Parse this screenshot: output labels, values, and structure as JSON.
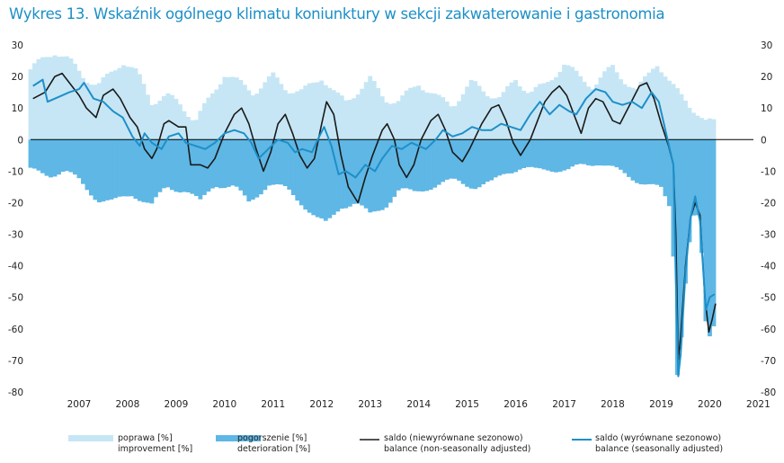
{
  "chart_data": {
    "type": "bar+line",
    "title": "Wykres 13. Wskaźnik ogólnego klimatu koniunktury w sekcji zakwaterowanie i gastronomia",
    "ylim": [
      -80,
      30
    ],
    "y_ticks": [
      "30",
      "20",
      "10",
      "0",
      "-10",
      "-20",
      "-30",
      "-40",
      "-50",
      "-60",
      "-70",
      "-80"
    ],
    "x_start": 2006.5,
    "x_end": 2021.4,
    "categories": [
      "2007",
      "2008",
      "2009",
      "2010",
      "2011",
      "2012",
      "2013",
      "2014",
      "2015",
      "2016",
      "2017",
      "2018",
      "2019",
      "2020",
      "2021"
    ],
    "colors": {
      "improvement": "#c6e6f5",
      "deterioration": "#5eb7e5",
      "nsa": "#1a1a1a",
      "sa": "#1d8fc9",
      "zero": "#000000",
      "title": "#1b8fc7"
    },
    "series": {
      "improvement_anchors": [
        [
          2006.5,
          22
        ],
        [
          2006.8,
          26
        ],
        [
          2007.0,
          28
        ],
        [
          2007.3,
          25
        ],
        [
          2007.6,
          20
        ],
        [
          2007.9,
          17
        ],
        [
          2008.1,
          20
        ],
        [
          2008.4,
          25
        ],
        [
          2008.7,
          21
        ],
        [
          2009.0,
          12
        ],
        [
          2009.3,
          14
        ],
        [
          2009.6,
          11
        ],
        [
          2009.9,
          6
        ],
        [
          2010.2,
          13
        ],
        [
          2010.5,
          21
        ],
        [
          2010.8,
          18
        ],
        [
          2011.1,
          15
        ],
        [
          2011.5,
          20
        ],
        [
          2011.8,
          16
        ],
        [
          2012.1,
          15
        ],
        [
          2012.5,
          20
        ],
        [
          2012.8,
          14
        ],
        [
          2013.0,
          12
        ],
        [
          2013.5,
          19
        ],
        [
          2013.8,
          13
        ],
        [
          2014.1,
          12
        ],
        [
          2014.5,
          18
        ],
        [
          2014.9,
          13
        ],
        [
          2015.2,
          11
        ],
        [
          2015.6,
          18
        ],
        [
          2015.9,
          15
        ],
        [
          2016.2,
          13
        ],
        [
          2016.5,
          19
        ],
        [
          2016.8,
          15
        ],
        [
          2017.1,
          17
        ],
        [
          2017.5,
          24
        ],
        [
          2017.8,
          20
        ],
        [
          2018.1,
          17
        ],
        [
          2018.5,
          23
        ],
        [
          2018.8,
          18
        ],
        [
          2019.0,
          15
        ],
        [
          2019.4,
          25
        ],
        [
          2019.7,
          17
        ],
        [
          2020.0,
          13
        ],
        [
          2020.2,
          9
        ],
        [
          2020.4,
          5
        ],
        [
          2020.6,
          6
        ]
      ],
      "deterioration_anchors": [
        [
          2006.5,
          -10
        ],
        [
          2006.9,
          -11
        ],
        [
          2007.2,
          -10
        ],
        [
          2007.5,
          -13
        ],
        [
          2007.9,
          -19
        ],
        [
          2008.2,
          -20
        ],
        [
          2008.6,
          -17
        ],
        [
          2009.0,
          -21
        ],
        [
          2009.3,
          -15
        ],
        [
          2009.7,
          -16
        ],
        [
          2010.0,
          -20
        ],
        [
          2010.3,
          -14
        ],
        [
          2010.7,
          -15
        ],
        [
          2011.0,
          -20
        ],
        [
          2011.4,
          -14
        ],
        [
          2011.8,
          -16
        ],
        [
          2012.1,
          -20
        ],
        [
          2012.4,
          -25
        ],
        [
          2012.6,
          -27
        ],
        [
          2012.9,
          -21
        ],
        [
          2013.2,
          -20
        ],
        [
          2013.5,
          -24
        ],
        [
          2013.8,
          -21
        ],
        [
          2014.1,
          -16
        ],
        [
          2014.4,
          -17
        ],
        [
          2014.7,
          -15
        ],
        [
          2015.0,
          -14
        ],
        [
          2015.3,
          -13
        ],
        [
          2015.7,
          -15
        ],
        [
          2016.0,
          -14
        ],
        [
          2016.3,
          -10
        ],
        [
          2016.6,
          -9
        ],
        [
          2016.9,
          -10
        ],
        [
          2017.2,
          -9
        ],
        [
          2017.6,
          -10
        ],
        [
          2017.9,
          -8
        ],
        [
          2018.2,
          -7
        ],
        [
          2018.6,
          -10
        ],
        [
          2018.9,
          -12
        ],
        [
          2019.2,
          -14
        ],
        [
          2019.5,
          -16
        ],
        [
          2019.7,
          -22
        ],
        [
          2019.78,
          -45
        ],
        [
          2019.83,
          -74
        ],
        [
          2019.9,
          -65
        ],
        [
          2020.0,
          -45
        ],
        [
          2020.1,
          -30
        ],
        [
          2020.2,
          -22
        ],
        [
          2020.3,
          -28
        ],
        [
          2020.4,
          -55
        ],
        [
          2020.45,
          -65
        ],
        [
          2020.55,
          -60
        ],
        [
          2020.6,
          -58
        ]
      ],
      "nsa_anchors": [
        [
          2006.55,
          13
        ],
        [
          2006.8,
          15
        ],
        [
          2007.0,
          20
        ],
        [
          2007.15,
          21
        ],
        [
          2007.35,
          17
        ],
        [
          2007.5,
          14
        ],
        [
          2007.65,
          10
        ],
        [
          2007.85,
          7
        ],
        [
          2008.0,
          14
        ],
        [
          2008.2,
          16
        ],
        [
          2008.35,
          13
        ],
        [
          2008.55,
          7
        ],
        [
          2008.7,
          4
        ],
        [
          2008.85,
          -3
        ],
        [
          2009.0,
          -6
        ],
        [
          2009.1,
          -3
        ],
        [
          2009.25,
          5
        ],
        [
          2009.35,
          6
        ],
        [
          2009.55,
          4
        ],
        [
          2009.7,
          4
        ],
        [
          2009.8,
          -8
        ],
        [
          2010.0,
          -8
        ],
        [
          2010.15,
          -9
        ],
        [
          2010.3,
          -6
        ],
        [
          2010.5,
          2
        ],
        [
          2010.7,
          8
        ],
        [
          2010.85,
          10
        ],
        [
          2011.0,
          5
        ],
        [
          2011.15,
          -3
        ],
        [
          2011.3,
          -10
        ],
        [
          2011.45,
          -4
        ],
        [
          2011.6,
          5
        ],
        [
          2011.75,
          8
        ],
        [
          2011.9,
          2
        ],
        [
          2012.05,
          -5
        ],
        [
          2012.2,
          -9
        ],
        [
          2012.35,
          -6
        ],
        [
          2012.5,
          5
        ],
        [
          2012.6,
          12
        ],
        [
          2012.75,
          8
        ],
        [
          2012.9,
          -5
        ],
        [
          2013.05,
          -15
        ],
        [
          2013.25,
          -20
        ],
        [
          2013.4,
          -12
        ],
        [
          2013.55,
          -5
        ],
        [
          2013.75,
          3
        ],
        [
          2013.85,
          5
        ],
        [
          2014.0,
          0
        ],
        [
          2014.1,
          -8
        ],
        [
          2014.25,
          -12
        ],
        [
          2014.4,
          -8
        ],
        [
          2014.55,
          0
        ],
        [
          2014.75,
          6
        ],
        [
          2014.9,
          8
        ],
        [
          2015.05,
          3
        ],
        [
          2015.2,
          -4
        ],
        [
          2015.4,
          -7
        ],
        [
          2015.55,
          -3
        ],
        [
          2015.8,
          5
        ],
        [
          2016.0,
          10
        ],
        [
          2016.15,
          11
        ],
        [
          2016.3,
          6
        ],
        [
          2016.45,
          -1
        ],
        [
          2016.6,
          -5
        ],
        [
          2016.8,
          0
        ],
        [
          2016.95,
          6
        ],
        [
          2017.1,
          12
        ],
        [
          2017.25,
          15
        ],
        [
          2017.4,
          17
        ],
        [
          2017.55,
          14
        ],
        [
          2017.7,
          8
        ],
        [
          2017.85,
          2
        ],
        [
          2018.0,
          10
        ],
        [
          2018.15,
          13
        ],
        [
          2018.3,
          12
        ],
        [
          2018.5,
          6
        ],
        [
          2018.65,
          5
        ],
        [
          2018.85,
          11
        ],
        [
          2019.05,
          17
        ],
        [
          2019.2,
          18
        ],
        [
          2019.35,
          13
        ],
        [
          2019.5,
          5
        ],
        [
          2019.65,
          -2
        ],
        [
          2019.75,
          -8
        ],
        [
          2019.8,
          -30
        ],
        [
          2019.85,
          -70
        ],
        [
          2019.9,
          -62
        ],
        [
          2020.0,
          -40
        ],
        [
          2020.1,
          -25
        ],
        [
          2020.2,
          -20
        ],
        [
          2020.3,
          -24
        ],
        [
          2020.4,
          -50
        ],
        [
          2020.48,
          -61
        ],
        [
          2020.55,
          -57
        ],
        [
          2020.62,
          -52
        ]
      ],
      "sa_anchors": [
        [
          2006.55,
          17
        ],
        [
          2006.75,
          19
        ],
        [
          2006.85,
          12
        ],
        [
          2007.0,
          13
        ],
        [
          2007.3,
          15
        ],
        [
          2007.5,
          16
        ],
        [
          2007.6,
          18
        ],
        [
          2007.8,
          13
        ],
        [
          2008.0,
          12
        ],
        [
          2008.2,
          9
        ],
        [
          2008.4,
          7
        ],
        [
          2008.6,
          1
        ],
        [
          2008.75,
          -2
        ],
        [
          2008.85,
          2
        ],
        [
          2009.0,
          -1
        ],
        [
          2009.2,
          -3
        ],
        [
          2009.35,
          1
        ],
        [
          2009.55,
          2
        ],
        [
          2009.7,
          -1
        ],
        [
          2009.9,
          -2
        ],
        [
          2010.1,
          -3
        ],
        [
          2010.3,
          -1
        ],
        [
          2010.5,
          2
        ],
        [
          2010.7,
          3
        ],
        [
          2010.9,
          2
        ],
        [
          2011.05,
          -1
        ],
        [
          2011.2,
          -6
        ],
        [
          2011.4,
          -3
        ],
        [
          2011.6,
          0
        ],
        [
          2011.8,
          -1
        ],
        [
          2011.95,
          -4
        ],
        [
          2012.1,
          -3
        ],
        [
          2012.3,
          -4
        ],
        [
          2012.45,
          1
        ],
        [
          2012.55,
          4
        ],
        [
          2012.7,
          -2
        ],
        [
          2012.85,
          -11
        ],
        [
          2013.0,
          -10
        ],
        [
          2013.2,
          -12
        ],
        [
          2013.4,
          -8
        ],
        [
          2013.6,
          -10
        ],
        [
          2013.75,
          -6
        ],
        [
          2013.95,
          -2
        ],
        [
          2014.15,
          -3
        ],
        [
          2014.35,
          -1
        ],
        [
          2014.5,
          -2
        ],
        [
          2014.65,
          -3
        ],
        [
          2014.85,
          0
        ],
        [
          2015.0,
          3
        ],
        [
          2015.2,
          1
        ],
        [
          2015.4,
          2
        ],
        [
          2015.6,
          4
        ],
        [
          2015.8,
          3
        ],
        [
          2016.0,
          3
        ],
        [
          2016.2,
          5
        ],
        [
          2016.4,
          4
        ],
        [
          2016.6,
          3
        ],
        [
          2016.8,
          8
        ],
        [
          2017.0,
          12
        ],
        [
          2017.2,
          8
        ],
        [
          2017.4,
          11
        ],
        [
          2017.6,
          9
        ],
        [
          2017.75,
          8
        ],
        [
          2017.95,
          13
        ],
        [
          2018.15,
          16
        ],
        [
          2018.35,
          15
        ],
        [
          2018.5,
          12
        ],
        [
          2018.7,
          11
        ],
        [
          2018.9,
          12
        ],
        [
          2019.1,
          10
        ],
        [
          2019.3,
          15
        ],
        [
          2019.45,
          12
        ],
        [
          2019.6,
          2
        ],
        [
          2019.75,
          -8
        ],
        [
          2019.8,
          -45
        ],
        [
          2019.85,
          -75
        ],
        [
          2019.9,
          -68
        ],
        [
          2020.0,
          -42
        ],
        [
          2020.1,
          -25
        ],
        [
          2020.2,
          -18
        ],
        [
          2020.3,
          -26
        ],
        [
          2020.42,
          -54
        ],
        [
          2020.5,
          -50
        ],
        [
          2020.6,
          -49
        ]
      ]
    },
    "legend": [
      {
        "pl": "poprawa [%]",
        "en": "improvement [%]"
      },
      {
        "pl": "pogorszenie [%]",
        "en": "deterioration [%]"
      },
      {
        "pl": "saldo (niewyrównane sezonowo)",
        "en": "balance (non-seasonally adjusted)"
      },
      {
        "pl": "saldo (wyrównane sezonowo)",
        "en": "balance (seasonally adjusted)"
      }
    ]
  }
}
